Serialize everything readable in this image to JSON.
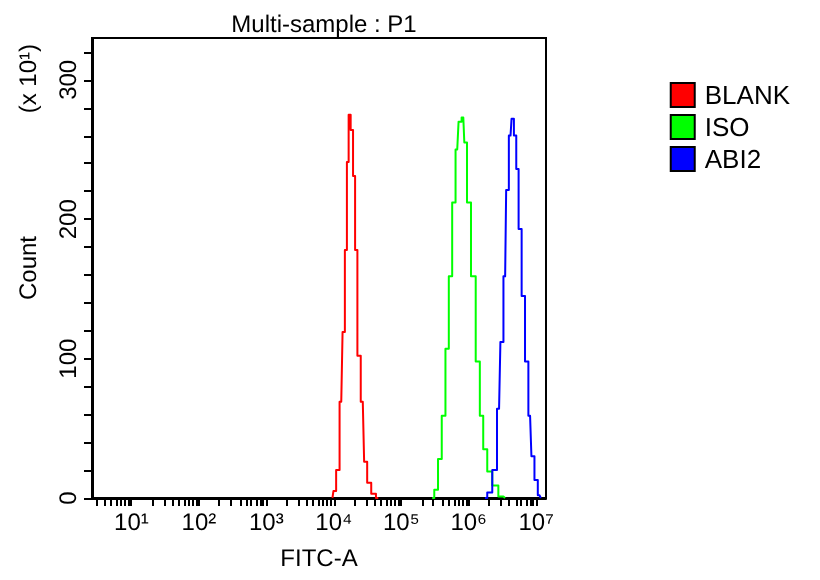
{
  "chart_data": {
    "type": "step",
    "title": "Multi-sample : P1",
    "xlabel": "FITC-A",
    "ylabel": "Count",
    "annotations": [
      "(x 10¹)"
    ],
    "log": "x",
    "grid": false,
    "legend": "top right",
    "marker": "none",
    "line_style": "solid",
    "xlim": [
      2.6,
      14000000
    ],
    "ylim": [
      0,
      330
    ],
    "xticks": [
      {
        "value": 3,
        "label": null
      },
      {
        "value": 4,
        "label": null
      },
      {
        "value": 5,
        "label": null
      },
      {
        "value": 6,
        "label": null
      },
      {
        "value": 7,
        "label": null
      },
      {
        "value": 8,
        "label": null
      },
      {
        "value": 9,
        "label": null
      },
      {
        "value": 10,
        "label": "10¹"
      },
      {
        "value": 20,
        "label": null
      },
      {
        "value": 30,
        "label": null
      },
      {
        "value": 40,
        "label": null
      },
      {
        "value": 50,
        "label": null
      },
      {
        "value": 60,
        "label": null
      },
      {
        "value": 70,
        "label": null
      },
      {
        "value": 80,
        "label": null
      },
      {
        "value": 90,
        "label": null
      },
      {
        "value": 100,
        "label": "10²"
      },
      {
        "value": 200,
        "label": null
      },
      {
        "value": 300,
        "label": null
      },
      {
        "value": 400,
        "label": null
      },
      {
        "value": 500,
        "label": null
      },
      {
        "value": 600,
        "label": null
      },
      {
        "value": 700,
        "label": null
      },
      {
        "value": 800,
        "label": null
      },
      {
        "value": 900,
        "label": null
      },
      {
        "value": 1000,
        "label": "10³"
      },
      {
        "value": 2000,
        "label": null
      },
      {
        "value": 3000,
        "label": null
      },
      {
        "value": 4000,
        "label": null
      },
      {
        "value": 5000,
        "label": null
      },
      {
        "value": 6000,
        "label": null
      },
      {
        "value": 7000,
        "label": null
      },
      {
        "value": 8000,
        "label": null
      },
      {
        "value": 9000,
        "label": null
      },
      {
        "value": 10000,
        "label": "10⁴"
      },
      {
        "value": 20000,
        "label": null
      },
      {
        "value": 30000,
        "label": null
      },
      {
        "value": 40000,
        "label": null
      },
      {
        "value": 50000,
        "label": null
      },
      {
        "value": 60000,
        "label": null
      },
      {
        "value": 70000,
        "label": null
      },
      {
        "value": 80000,
        "label": null
      },
      {
        "value": 90000,
        "label": null
      },
      {
        "value": 100000,
        "label": "10⁵"
      },
      {
        "value": 200000,
        "label": null
      },
      {
        "value": 300000,
        "label": null
      },
      {
        "value": 400000,
        "label": null
      },
      {
        "value": 500000,
        "label": null
      },
      {
        "value": 600000,
        "label": null
      },
      {
        "value": 700000,
        "label": null
      },
      {
        "value": 800000,
        "label": null
      },
      {
        "value": 900000,
        "label": null
      },
      {
        "value": 1000000,
        "label": "10⁶"
      },
      {
        "value": 2000000,
        "label": null
      },
      {
        "value": 3000000,
        "label": null
      },
      {
        "value": 4000000,
        "label": null
      },
      {
        "value": 5000000,
        "label": null
      },
      {
        "value": 6000000,
        "label": null
      },
      {
        "value": 7000000,
        "label": null
      },
      {
        "value": 8000000,
        "label": null
      },
      {
        "value": 9000000,
        "label": null
      },
      {
        "value": 10000000,
        "label": "10⁷"
      }
    ],
    "yticks": [
      0,
      {
        "value": 20,
        "label": null
      },
      {
        "value": 40,
        "label": null
      },
      {
        "value": 60,
        "label": null
      },
      {
        "value": 80,
        "label": null
      },
      100,
      {
        "value": 120,
        "label": null
      },
      {
        "value": 140,
        "label": null
      },
      {
        "value": 160,
        "label": null
      },
      {
        "value": 180,
        "label": null
      },
      200,
      {
        "value": 220,
        "label": null
      },
      {
        "value": 240,
        "label": null
      },
      {
        "value": 260,
        "label": null
      },
      {
        "value": 280,
        "label": null
      },
      300,
      {
        "value": 320,
        "label": null
      }
    ],
    "series": [
      {
        "name": "BLANK",
        "color": "#ff0000",
        "x": [
          9550,
          10200,
          11500,
          12900,
          14100,
          15100,
          16200,
          17000,
          18600,
          20000,
          21400,
          23400,
          26900,
          29500,
          33100,
          38900,
          45700
        ],
        "values": [
          0,
          5,
          20,
          69,
          119,
          178,
          241,
          275,
          264,
          231,
          178,
          102,
          69,
          26,
          11,
          3,
          0
        ]
      },
      {
        "name": "ISO",
        "color": "#00ff00",
        "x": [
          288000,
          331000,
          372000,
          427000,
          479000,
          537000,
          603000,
          676000,
          741000,
          832000,
          891000,
          1000000,
          1170000,
          1380000,
          1550000,
          1740000,
          2040000,
          2450000,
          3090000,
          3470000
        ],
        "values": [
          0,
          6,
          28,
          59,
          107,
          159,
          212,
          250,
          270,
          273,
          255,
          212,
          159,
          98,
          59,
          35,
          19,
          9,
          1,
          0
        ]
      },
      {
        "name": "ABI2",
        "color": "#0000ff",
        "x": [
          1740000,
          2040000,
          2450000,
          2820000,
          3090000,
          3470000,
          3720000,
          4170000,
          4470000,
          4900000,
          5250000,
          5750000,
          6460000,
          7240000,
          8130000,
          8910000,
          10000000,
          11200000,
          12300000
        ],
        "values": [
          0,
          4,
          20,
          64,
          112,
          159,
          221,
          260,
          272,
          260,
          236,
          193,
          145,
          98,
          59,
          30,
          13,
          2,
          0
        ]
      }
    ]
  }
}
